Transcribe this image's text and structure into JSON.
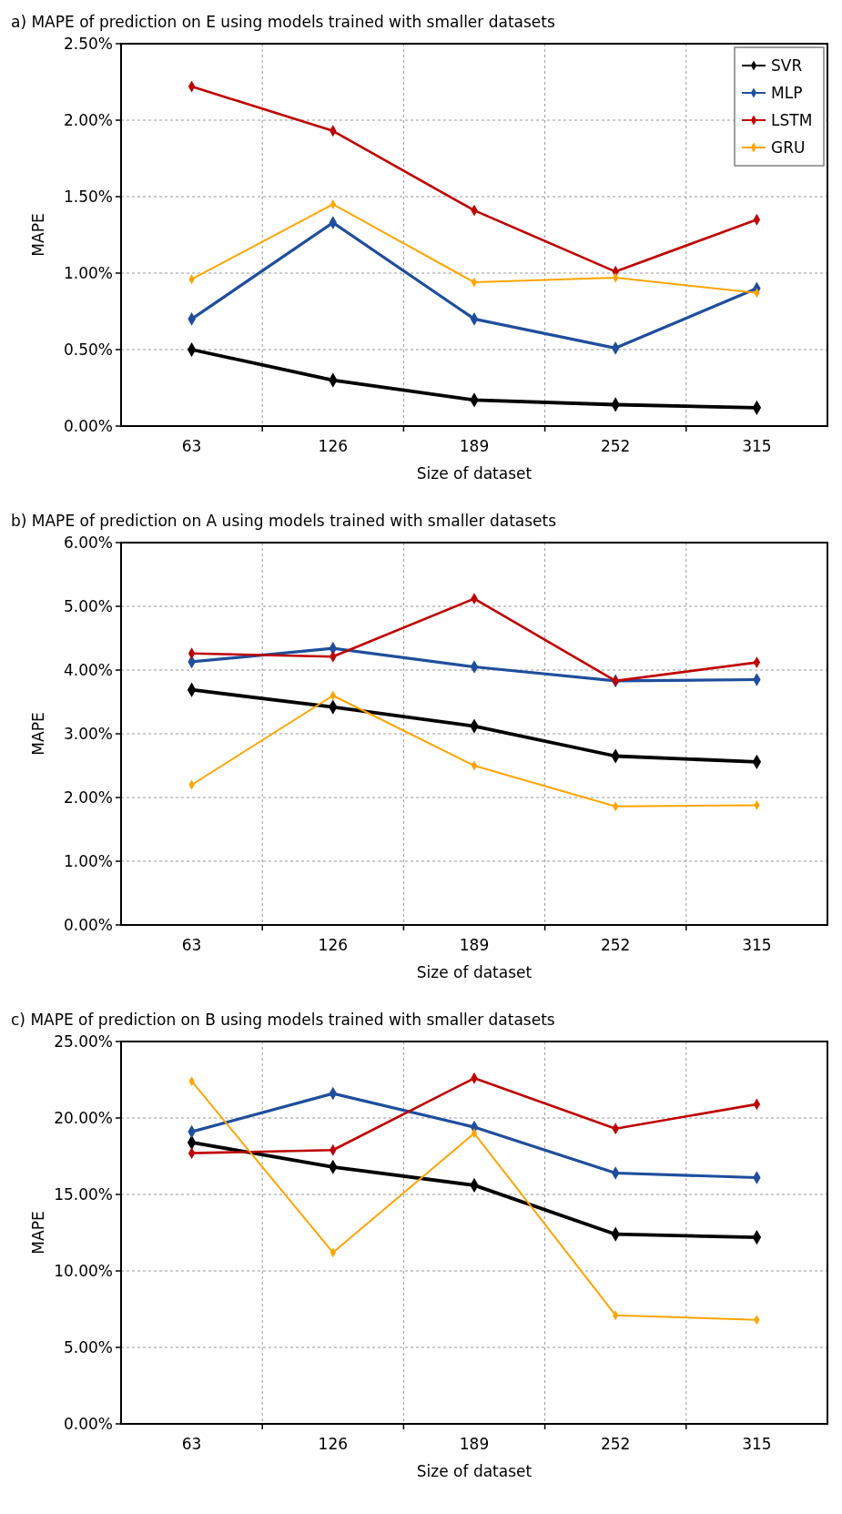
{
  "chart_data": [
    {
      "type": "line",
      "title": "a) MAPE of prediction on E using models trained with smaller datasets",
      "xlabel": "Size of dataset",
      "ylabel": "MAPE",
      "categories": [
        "63",
        "126",
        "189",
        "252",
        "315"
      ],
      "series": [
        {
          "name": "SVR",
          "color": "#000000",
          "values": [
            0.5,
            0.3,
            0.17,
            0.14,
            0.12
          ]
        },
        {
          "name": "MLP",
          "color": "#1f4e9c",
          "values": [
            0.7,
            1.33,
            0.7,
            0.51,
            0.9
          ]
        },
        {
          "name": "LSTM",
          "color": "#c00000",
          "values": [
            2.22,
            1.93,
            1.41,
            1.01,
            1.35
          ]
        },
        {
          "name": "GRU",
          "color": "#ffa500",
          "values": [
            0.96,
            1.45,
            0.94,
            0.97,
            0.87
          ]
        }
      ],
      "ylim": [
        0,
        2.5
      ],
      "yticks": [
        {
          "value": 0,
          "label": "0.00%"
        },
        {
          "value": 0.5,
          "label": "0.50%"
        },
        {
          "value": 1,
          "label": "1.00%"
        },
        {
          "value": 1.5,
          "label": "1.50%"
        },
        {
          "value": 2,
          "label": "2.00%"
        },
        {
          "value": 2.5,
          "label": "2.50%"
        }
      ],
      "grid": true,
      "legend": "top right",
      "marker": "diamond",
      "line_style": "solid"
    },
    {
      "type": "line",
      "title": "b) MAPE of prediction on A using models trained with smaller datasets",
      "xlabel": "Size of dataset",
      "ylabel": "MAPE",
      "categories": [
        "63",
        "126",
        "189",
        "252",
        "315"
      ],
      "series": [
        {
          "color": "#000000",
          "values": [
            3.69,
            3.42,
            3.12,
            2.65,
            2.56
          ]
        },
        {
          "color": "#1f4e9c",
          "values": [
            4.13,
            4.34,
            4.05,
            3.83,
            3.85
          ]
        },
        {
          "color": "#c00000",
          "values": [
            4.26,
            4.21,
            5.12,
            3.83,
            4.12
          ]
        },
        {
          "color": "#ffa500",
          "values": [
            2.2,
            3.6,
            2.5,
            1.86,
            1.88
          ]
        }
      ],
      "ylim": [
        0,
        6
      ],
      "yticks": [
        {
          "value": 0,
          "label": "0.00%"
        },
        {
          "value": 1,
          "label": "1.00%"
        },
        {
          "value": 2,
          "label": "2.00%"
        },
        {
          "value": 3,
          "label": "3.00%"
        },
        {
          "value": 4,
          "label": "4.00%"
        },
        {
          "value": 5,
          "label": "5.00%"
        },
        {
          "value": 6,
          "label": "6.00%"
        }
      ],
      "grid": true,
      "marker": "diamond",
      "line_style": "solid"
    },
    {
      "type": "line",
      "title": "c) MAPE of prediction on B using models trained with smaller datasets",
      "xlabel": "Size of dataset",
      "ylabel": "MAPE",
      "categories": [
        "63",
        "126",
        "189",
        "252",
        "315"
      ],
      "series": [
        {
          "color": "#000000",
          "values": [
            18.4,
            16.8,
            15.6,
            12.4,
            12.2
          ]
        },
        {
          "color": "#1f4e9c",
          "values": [
            19.1,
            21.6,
            19.4,
            16.4,
            16.1
          ]
        },
        {
          "color": "#c00000",
          "values": [
            17.7,
            17.9,
            22.6,
            19.3,
            20.9
          ]
        },
        {
          "color": "#ffa500",
          "values": [
            22.4,
            11.2,
            19.0,
            7.1,
            6.8
          ]
        }
      ],
      "ylim": [
        0,
        25
      ],
      "yticks": [
        {
          "value": 0,
          "label": "0.00%"
        },
        {
          "value": 5,
          "label": "5.00%"
        },
        {
          "value": 10,
          "label": "10.00%"
        },
        {
          "value": 15,
          "label": "15.00%"
        },
        {
          "value": 20,
          "label": "20.00%"
        },
        {
          "value": 25,
          "label": "25.00%"
        }
      ],
      "grid": true,
      "marker": "diamond",
      "line_style": "solid"
    }
  ]
}
